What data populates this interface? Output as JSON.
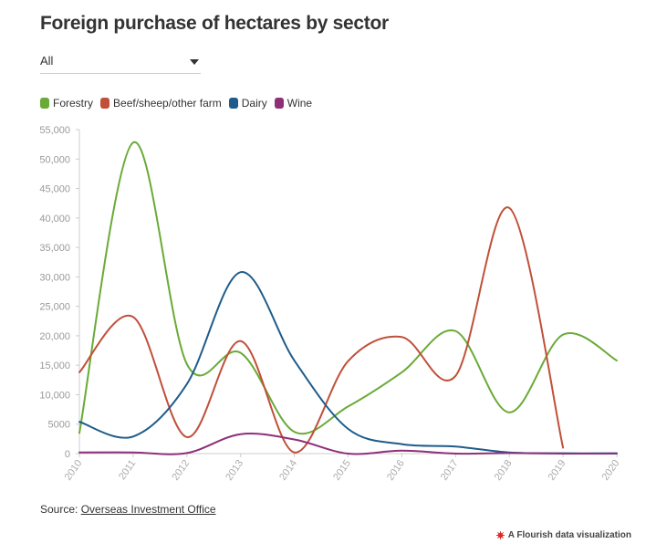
{
  "header": {
    "title": "Foreign purchase of hectares by sector"
  },
  "filter": {
    "selected": "All"
  },
  "source": {
    "prefix": "Source: ",
    "link": "Overseas Investment Office"
  },
  "branding": {
    "text": "A Flourish data visualization",
    "icon": "flourish-logo-icon"
  },
  "chart_data": {
    "type": "line",
    "title": "Foreign purchase of hectares by sector",
    "xlabel": "",
    "ylabel": "",
    "x": [
      "2010",
      "2011",
      "2012",
      "2013",
      "2014",
      "2015",
      "2016",
      "2017",
      "2018",
      "2019",
      "2020"
    ],
    "ylim": [
      0,
      55000
    ],
    "yticks": [
      0,
      5000,
      10000,
      15000,
      20000,
      25000,
      30000,
      35000,
      40000,
      45000,
      50000,
      55000
    ],
    "ytick_labels": [
      "0",
      "5000",
      "10,000",
      "15,000",
      "20,000",
      "25,000",
      "30,000",
      "35,000",
      "40,000",
      "45,000",
      "50,000",
      "55,000"
    ],
    "grid": false,
    "legend_position": "top-left",
    "series": [
      {
        "name": "Forestry",
        "color": "#6aaa37",
        "values": [
          3500,
          52800,
          15200,
          17100,
          3700,
          8000,
          13800,
          20800,
          7000,
          20200,
          15800
        ]
      },
      {
        "name": "Beef/sheep/other farm",
        "color": "#c0503a",
        "values": [
          13800,
          23200,
          2800,
          19100,
          200,
          15700,
          19800,
          13200,
          41700,
          1000,
          null
        ]
      },
      {
        "name": "Dairy",
        "color": "#1f5c8b",
        "values": [
          5400,
          2900,
          11800,
          30800,
          15800,
          4200,
          1600,
          1200,
          200,
          50,
          50
        ]
      },
      {
        "name": "Wine",
        "color": "#8e2f7a",
        "values": [
          200,
          200,
          100,
          3300,
          2400,
          0,
          500,
          0,
          100,
          0,
          0
        ]
      }
    ]
  }
}
